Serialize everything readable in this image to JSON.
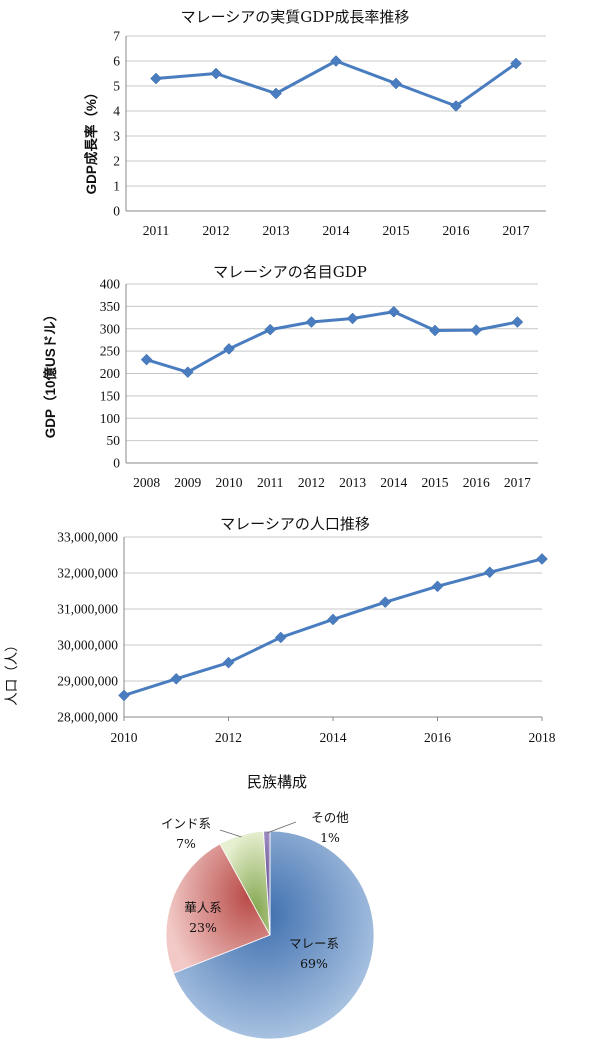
{
  "chart_data": [
    {
      "type": "line",
      "title": "マレーシアの実質GDP成長率推移",
      "ylabel": "GDP成長率（%）",
      "xlabel": "",
      "categories": [
        "2011",
        "2012",
        "2013",
        "2014",
        "2015",
        "2016",
        "2017"
      ],
      "values": [
        5.3,
        5.5,
        4.7,
        6.0,
        5.1,
        4.2,
        5.9
      ],
      "ylim": [
        0,
        7
      ],
      "yticks": [
        "0",
        "1",
        "2",
        "3",
        "4",
        "5",
        "6",
        "7"
      ],
      "grid": true,
      "color": "#4a7dc0"
    },
    {
      "type": "line",
      "title": "マレーシアの名目GDP",
      "ylabel": "GDP（10億USドル）",
      "xlabel": "",
      "categories": [
        "2008",
        "2009",
        "2010",
        "2011",
        "2012",
        "2013",
        "2014",
        "2015",
        "2016",
        "2017"
      ],
      "values": [
        231,
        203,
        255,
        298,
        315,
        323,
        338,
        296,
        297,
        315
      ],
      "ylim": [
        0,
        400
      ],
      "yticks": [
        "0",
        "50",
        "100",
        "150",
        "200",
        "250",
        "300",
        "350",
        "400"
      ],
      "grid": true,
      "color": "#4a7dc0"
    },
    {
      "type": "line",
      "title": "マレーシアの人口推移",
      "ylabel": "人口（人）",
      "xlabel": "",
      "x": [
        2010,
        2011,
        2012,
        2013,
        2014,
        2015,
        2016,
        2017,
        2018
      ],
      "values": [
        28600000,
        29060000,
        29510000,
        30210000,
        30710000,
        31190000,
        31630000,
        32020000,
        32390000
      ],
      "xlim": [
        2010,
        2018
      ],
      "xticks": [
        "2010",
        "2012",
        "2014",
        "2016",
        "2018"
      ],
      "ylim": [
        28000000,
        33000000
      ],
      "yticks": [
        "28,000,000",
        "29,000,000",
        "30,000,000",
        "31,000,000",
        "32,000,000",
        "33,000,000"
      ],
      "grid": true,
      "color": "#4a7dc0"
    },
    {
      "type": "pie",
      "title": "民族構成",
      "slices": [
        {
          "name": "マレー系",
          "label": "69%",
          "value": 69,
          "color": "#6f98cc"
        },
        {
          "name": "華人系",
          "label": "23%",
          "value": 23,
          "color": "#d98b8a"
        },
        {
          "name": "インド系",
          "label": "7%",
          "value": 7,
          "color": "#a9c979"
        },
        {
          "name": "その他",
          "label": "1%",
          "value": 1,
          "color": "#8e7bb5"
        }
      ]
    }
  ]
}
